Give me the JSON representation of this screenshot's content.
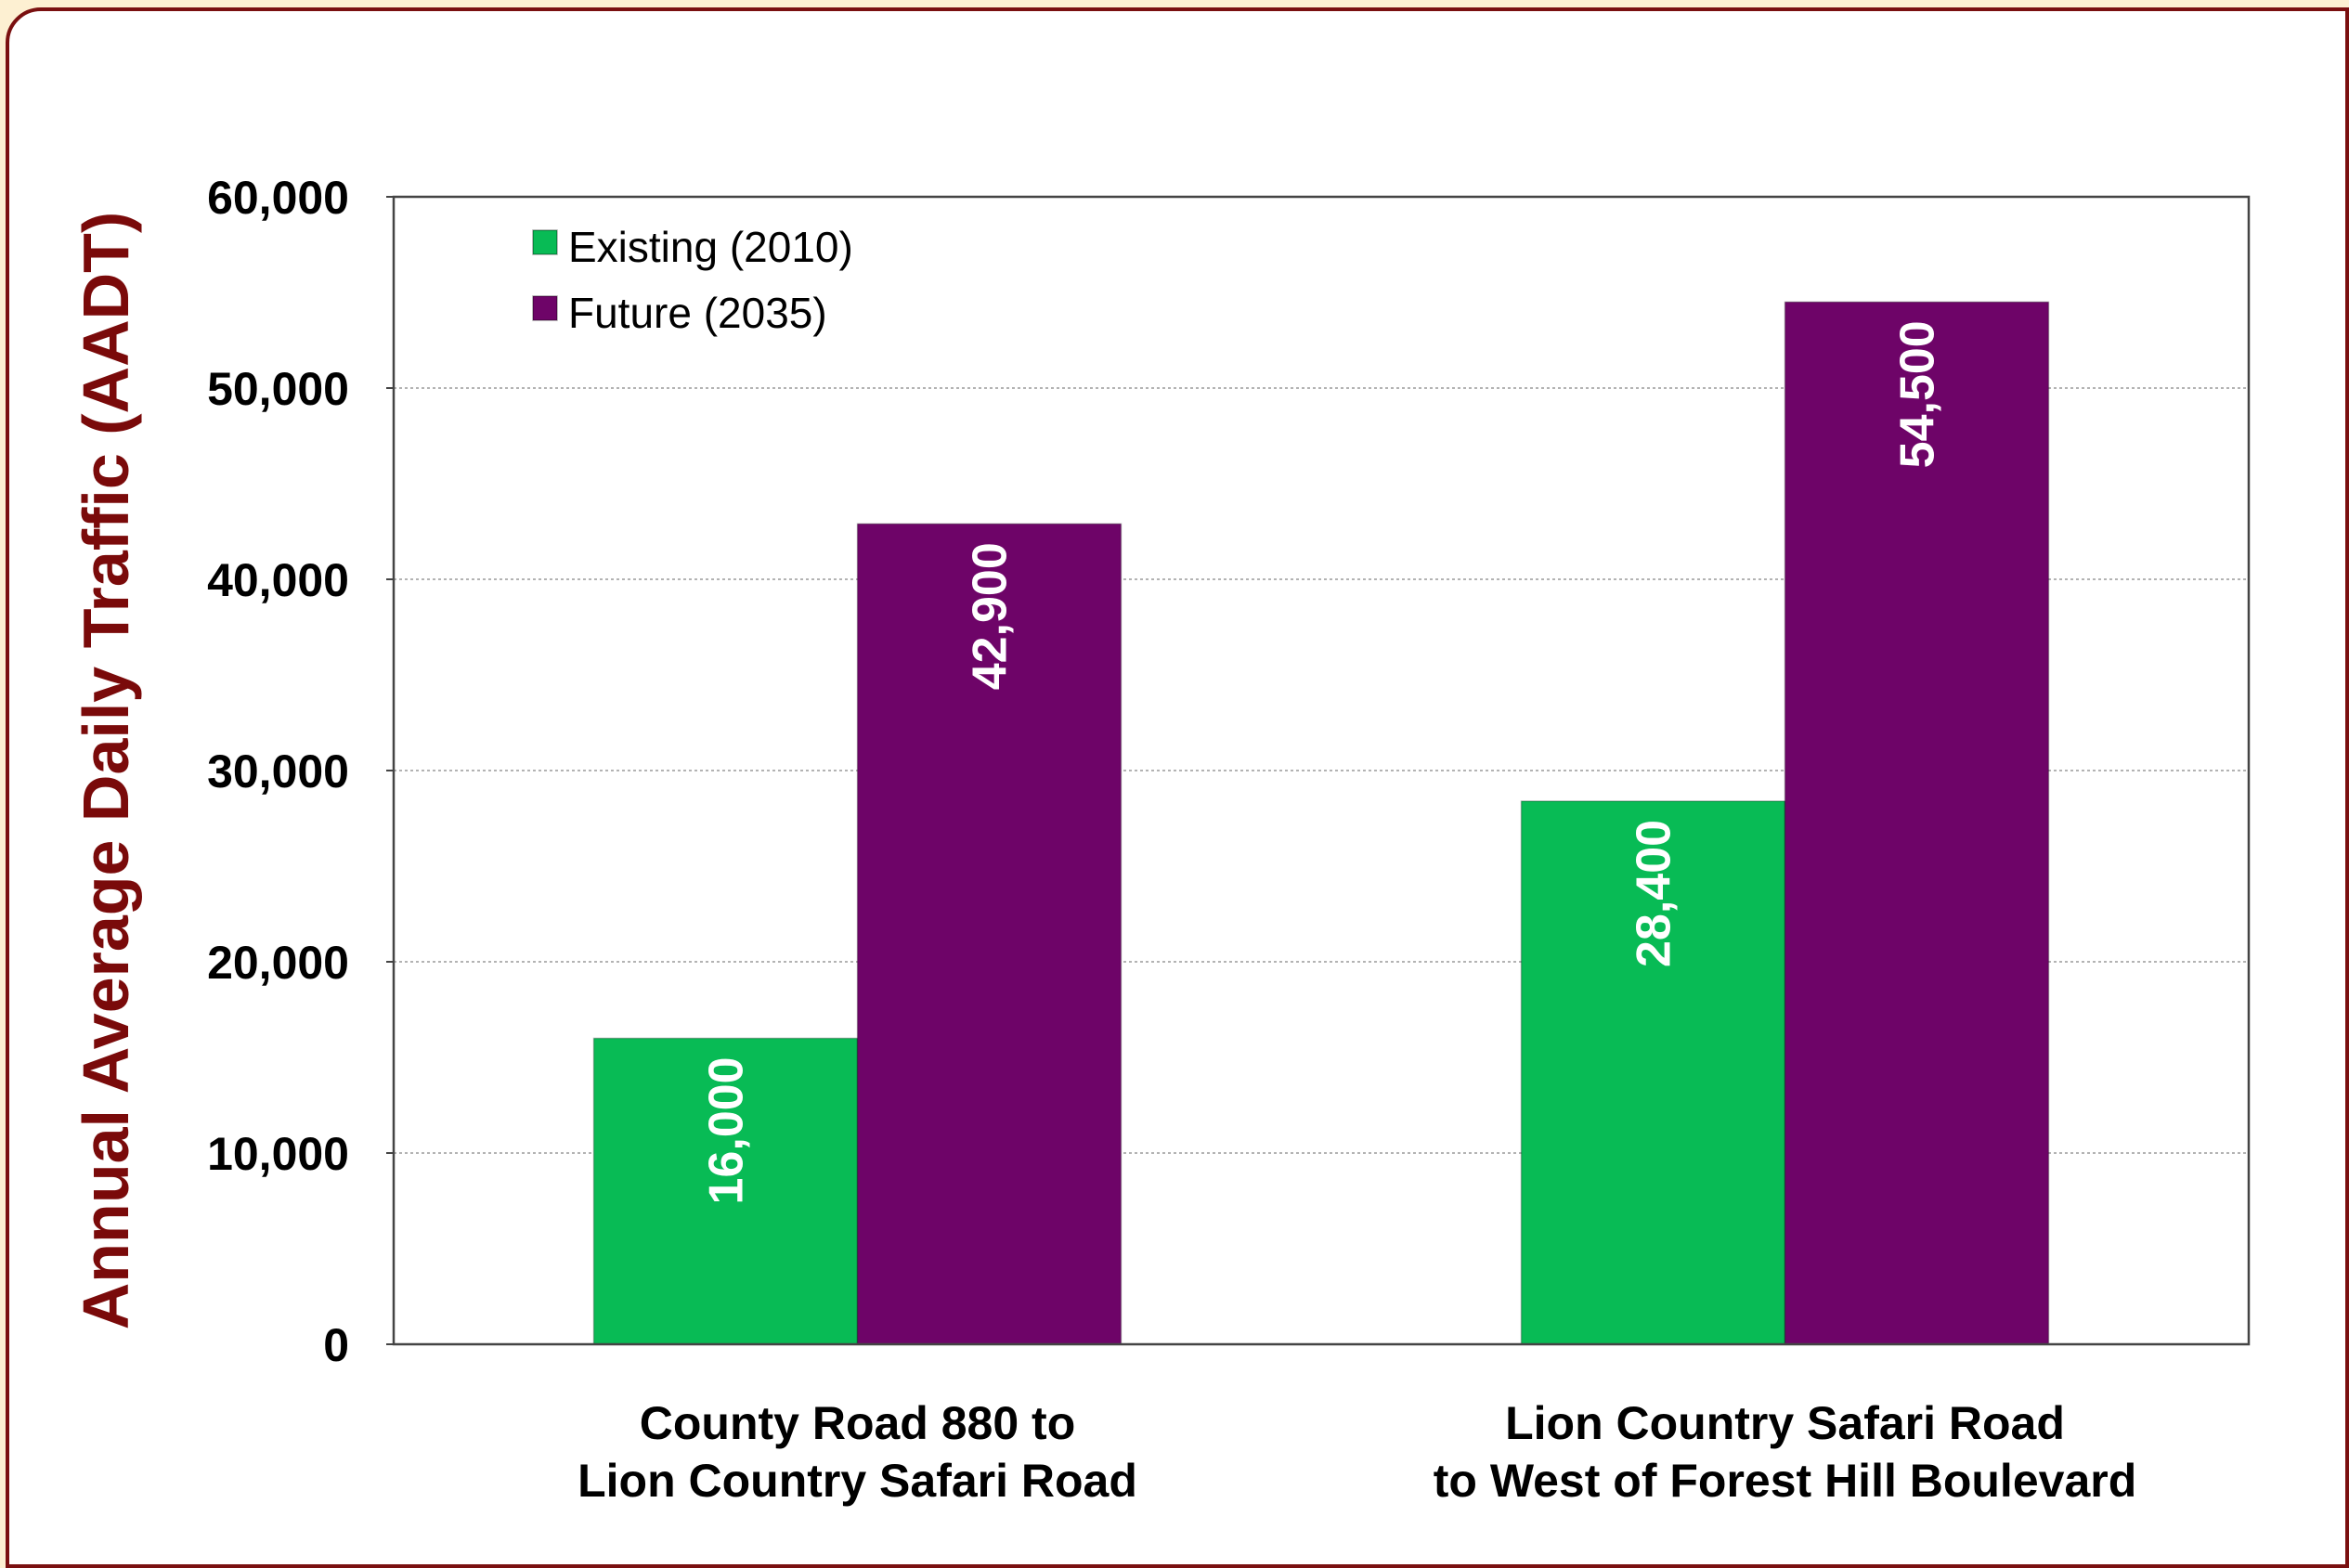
{
  "chart_data": {
    "type": "bar",
    "categories": [
      [
        "County Road 880 to",
        "Lion Country Safari Road"
      ],
      [
        "Lion Country Safari Road",
        "to West of Forest Hill Boulevard"
      ]
    ],
    "series": [
      {
        "name": "Existing (2010)",
        "color": "#08bb55",
        "values": [
          16000,
          28400
        ],
        "labels": [
          "16,000",
          "28,400"
        ]
      },
      {
        "name": "Future (2035)",
        "color": "#6e0468",
        "values": [
          42900,
          54500
        ],
        "labels": [
          "42,900",
          "54,500"
        ]
      }
    ],
    "ylabel": "Annual Average Daily  Traffic (AADT)",
    "ylim": [
      0,
      60000
    ],
    "yticks": [
      0,
      10000,
      20000,
      30000,
      40000,
      50000,
      60000
    ],
    "ytick_labels": [
      "0",
      "10,000",
      "20,000",
      "30,000",
      "40,000",
      "50,000",
      "60,000"
    ],
    "grid": true,
    "legend_position": "top-left"
  }
}
